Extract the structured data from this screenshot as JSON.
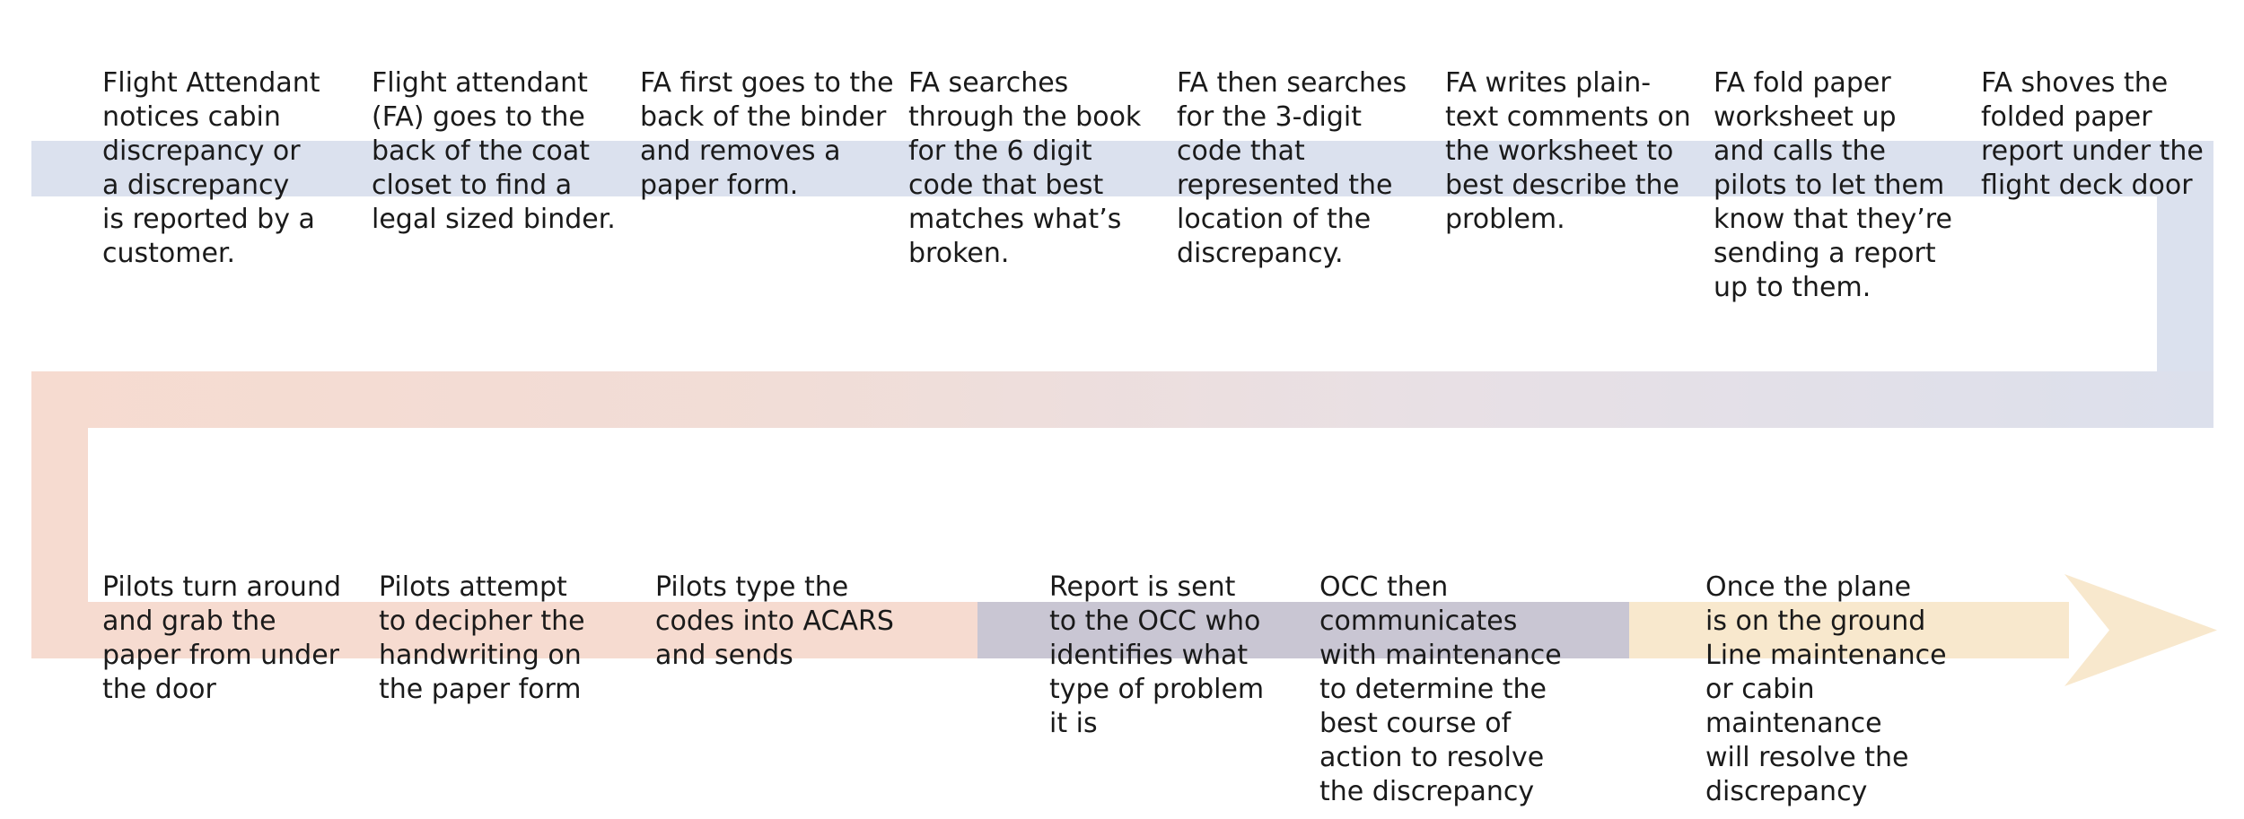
{
  "colors": {
    "top_band": "#dbe1ee",
    "return_band_start": "#f6dbd0",
    "return_band_end": "#dce0ec",
    "pilots_band": "#f6dbd0",
    "occ_band": "#c9c6d3",
    "maintenance_band": "#f8e8cd",
    "text": "#1a1a1a"
  },
  "top_row": [
    "Flight Attendant\nnotices cabin\ndiscrepancy or\na discrepancy\nis reported by a\ncustomer.",
    "Flight attendant\n(FA) goes to the\nback of the coat\ncloset to find a\nlegal sized binder.",
    "FA first goes to the\nback of the binder\nand removes a\npaper form.",
    "FA searches\nthrough the book\nfor the 6 digit\ncode that best\nmatches what’s\nbroken.",
    "FA then searches\nfor the 3-digit\ncode that\nrepresented the\nlocation of the\ndiscrepancy.",
    "FA writes plain-\ntext comments on\nthe worksheet to\nbest describe the\nproblem.",
    "FA fold paper\nworksheet up\nand calls the\npilots to let them\nknow that they’re\nsending a report\nup to them.",
    "FA shoves the\nfolded paper\nreport under the\nflight deck door"
  ],
  "bottom_row": [
    "Pilots turn around\nand grab the\npaper from under\nthe door",
    "Pilots attempt\nto decipher the\nhandwriting on\nthe paper form",
    "Pilots type the\ncodes into ACARS\nand sends",
    "Report is sent\nto the OCC who\nidentifies what\ntype of problem\nit is",
    "OCC then\ncommunicates\nwith maintenance\nto determine the\nbest course of\naction to resolve\nthe discrepancy",
    "Once the plane\nis on the ground\nLine maintenance\nor cabin\nmaintenance\nwill resolve the\ndiscrepancy"
  ]
}
